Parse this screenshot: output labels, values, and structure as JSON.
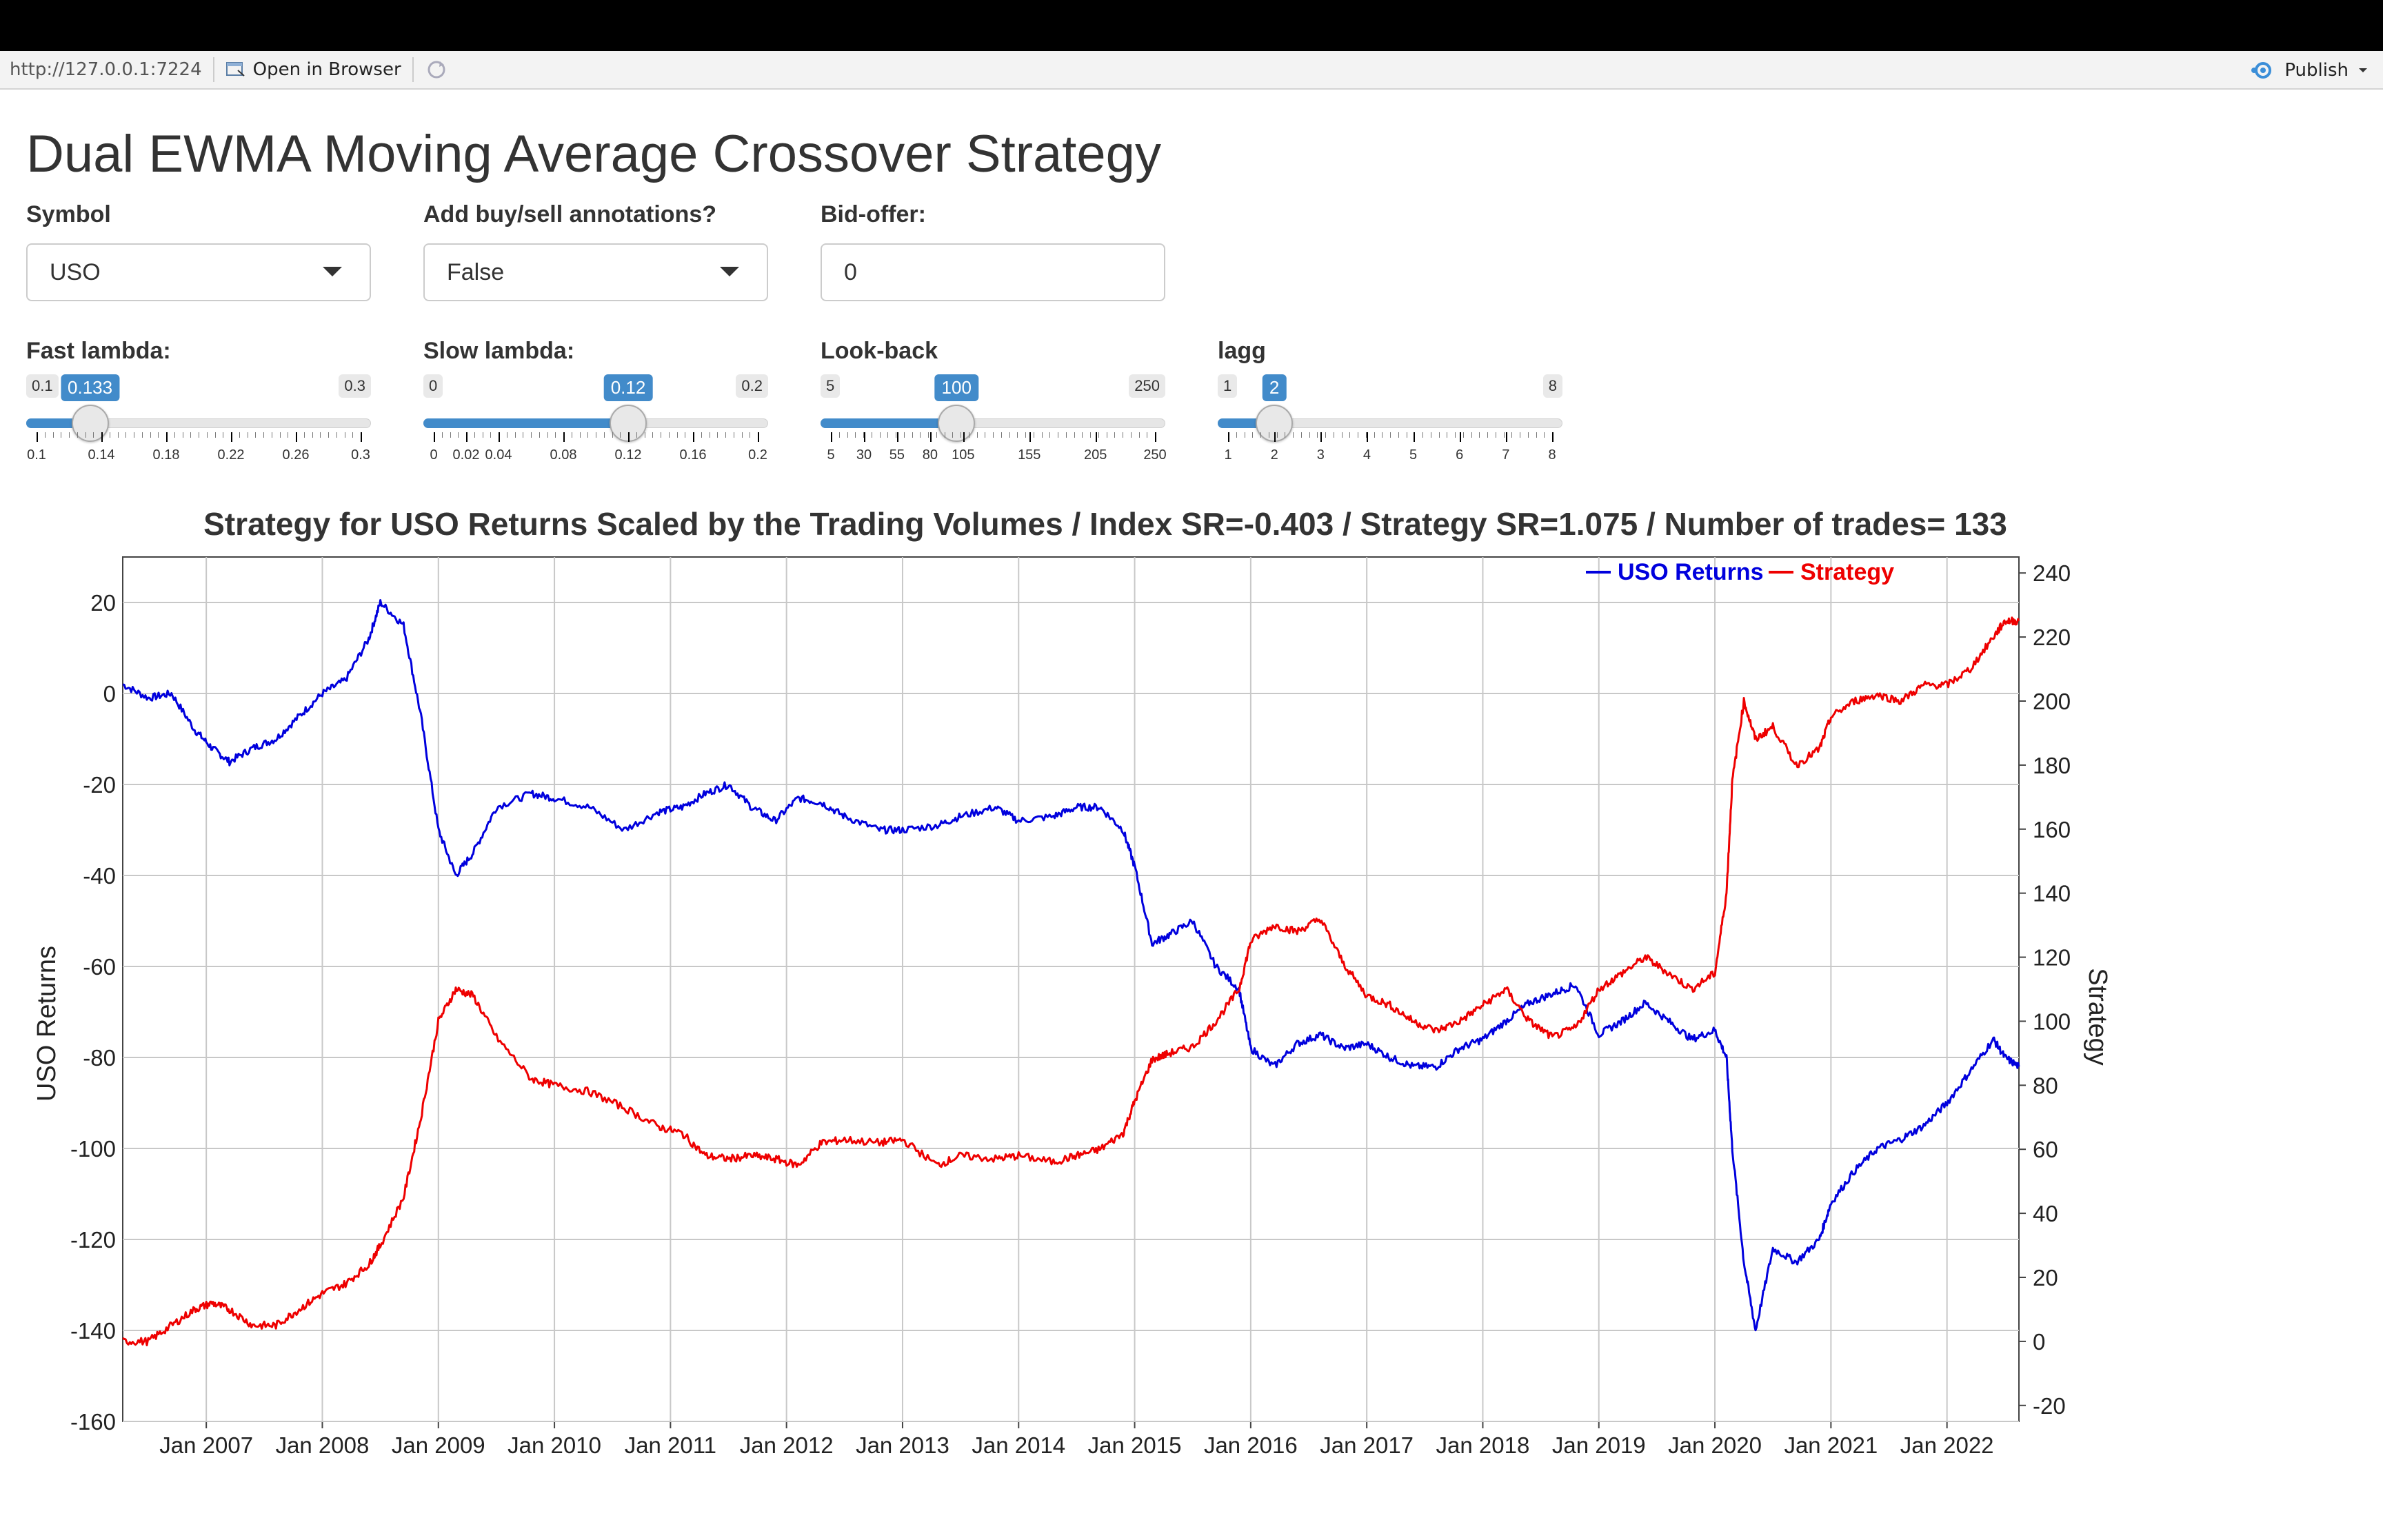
{
  "toolbar": {
    "url": "http://127.0.0.1:7224",
    "open_in_browser": "Open in Browser",
    "publish": "Publish"
  },
  "page": {
    "title": "Dual EWMA Moving Average Crossover Strategy"
  },
  "controls": {
    "symbol": {
      "label": "Symbol",
      "value": "USO"
    },
    "annotations": {
      "label": "Add buy/sell annotations?",
      "value": "False"
    },
    "bid_offer": {
      "label": "Bid-offer:",
      "value": "0"
    }
  },
  "sliders": [
    {
      "id": "fast",
      "label": "Fast lambda:",
      "min": 0.1,
      "max": 0.3,
      "value": 0.133,
      "min_label": "0.1",
      "max_label": "0.3",
      "value_label": "0.133",
      "ticks": [
        "0.1",
        "0.14",
        "0.18",
        "0.22",
        "0.26",
        "0.3"
      ]
    },
    {
      "id": "slow",
      "label": "Slow lambda:",
      "min": 0,
      "max": 0.2,
      "value": 0.12,
      "min_label": "0",
      "max_label": "0.2",
      "value_label": "0.12",
      "ticks": [
        "0",
        "0.02",
        "0.04",
        "0.08",
        "0.12",
        "0.16",
        "0.2"
      ]
    },
    {
      "id": "lookback",
      "label": "Look-back",
      "min": 5,
      "max": 250,
      "value": 100,
      "min_label": "5",
      "max_label": "250",
      "value_label": "100",
      "ticks": [
        "5",
        "30",
        "55",
        "80",
        "105",
        "155",
        "205",
        "250"
      ]
    },
    {
      "id": "lagg",
      "label": "lagg",
      "min": 1,
      "max": 8,
      "value": 2,
      "min_label": "1",
      "max_label": "8",
      "value_label": "2",
      "ticks": [
        "1",
        "2",
        "3",
        "4",
        "5",
        "6",
        "7",
        "8"
      ]
    }
  ],
  "chart_data": {
    "type": "line",
    "title": "Strategy for USO Returns Scaled by the Trading Volumes / Index SR=-0.403 / Strategy SR=1.075 / Number of trades= 133",
    "ylabel_left": "USO Returns",
    "ylabel_right": "Strategy",
    "ylim_left": [
      -160,
      30
    ],
    "ylim_right": [
      -25,
      245
    ],
    "x_ticks": [
      "Jan 2007",
      "Jan 2008",
      "Jan 2009",
      "Jan 2010",
      "Jan 2011",
      "Jan 2012",
      "Jan 2013",
      "Jan 2014",
      "Jan 2015",
      "Jan 2016",
      "Jan 2017",
      "Jan 2018",
      "Jan 2019",
      "Jan 2020",
      "Jan 2021",
      "Jan 2022"
    ],
    "x_range": [
      2006.28,
      2022.62
    ],
    "left_ticks": [
      20,
      0,
      -20,
      -40,
      -60,
      -80,
      -100,
      -120,
      -140,
      -160
    ],
    "right_ticks": [
      240,
      220,
      200,
      180,
      160,
      140,
      120,
      100,
      80,
      60,
      40,
      20,
      0,
      -20
    ],
    "grid": true,
    "legend_position": "top-right",
    "colors": {
      "uso": "#0000dd",
      "strategy": "#ee0000"
    },
    "series": [
      {
        "name": "USO Returns",
        "axis": "left",
        "color": "#0000dd",
        "x": [
          2006.28,
          2006.5,
          2006.7,
          2006.9,
          2007.05,
          2007.2,
          2007.4,
          2007.6,
          2007.8,
          2008.0,
          2008.2,
          2008.4,
          2008.5,
          2008.7,
          2008.85,
          2009.0,
          2009.15,
          2009.3,
          2009.5,
          2009.8,
          2010.0,
          2010.3,
          2010.6,
          2010.9,
          2011.1,
          2011.3,
          2011.5,
          2011.7,
          2011.9,
          2012.1,
          2012.3,
          2012.5,
          2012.8,
          2013.0,
          2013.3,
          2013.5,
          2013.8,
          2014.0,
          2014.3,
          2014.5,
          2014.7,
          2014.9,
          2015.0,
          2015.15,
          2015.3,
          2015.5,
          2015.7,
          2015.9,
          2016.0,
          2016.2,
          2016.4,
          2016.6,
          2016.8,
          2017.0,
          2017.2,
          2017.4,
          2017.6,
          2017.8,
          2018.0,
          2018.2,
          2018.4,
          2018.6,
          2018.8,
          2019.0,
          2019.2,
          2019.4,
          2019.6,
          2019.8,
          2020.0,
          2020.1,
          2020.15,
          2020.25,
          2020.35,
          2020.5,
          2020.7,
          2020.9,
          2021.0,
          2021.2,
          2021.4,
          2021.6,
          2021.8,
          2022.0,
          2022.2,
          2022.4,
          2022.5,
          2022.62
        ],
        "y": [
          2,
          -1,
          0,
          -8,
          -12,
          -15,
          -12,
          -10,
          -5,
          0,
          3,
          12,
          20,
          15,
          -5,
          -30,
          -40,
          -35,
          -25,
          -22,
          -23,
          -25,
          -30,
          -26,
          -25,
          -22,
          -20,
          -25,
          -28,
          -23,
          -24,
          -27,
          -30,
          -30,
          -29,
          -27,
          -25,
          -28,
          -27,
          -25,
          -25,
          -30,
          -38,
          -55,
          -53,
          -50,
          -60,
          -65,
          -78,
          -82,
          -77,
          -75,
          -78,
          -77,
          -80,
          -82,
          -82,
          -78,
          -76,
          -72,
          -68,
          -66,
          -64,
          -75,
          -72,
          -68,
          -72,
          -76,
          -74,
          -80,
          -100,
          -125,
          -140,
          -122,
          -125,
          -120,
          -112,
          -105,
          -100,
          -98,
          -95,
          -90,
          -83,
          -76,
          -80,
          -82
        ]
      },
      {
        "name": "Strategy",
        "axis": "right",
        "color": "#ee0000",
        "x": [
          2006.28,
          2006.5,
          2006.7,
          2006.9,
          2007.05,
          2007.2,
          2007.4,
          2007.6,
          2007.8,
          2008.0,
          2008.2,
          2008.4,
          2008.5,
          2008.7,
          2008.85,
          2009.0,
          2009.15,
          2009.3,
          2009.5,
          2009.8,
          2010.0,
          2010.3,
          2010.6,
          2010.9,
          2011.1,
          2011.3,
          2011.5,
          2011.7,
          2011.9,
          2012.1,
          2012.3,
          2012.5,
          2012.8,
          2013.0,
          2013.3,
          2013.5,
          2013.8,
          2014.0,
          2014.3,
          2014.5,
          2014.7,
          2014.9,
          2015.0,
          2015.15,
          2015.3,
          2015.5,
          2015.7,
          2015.9,
          2016.0,
          2016.2,
          2016.4,
          2016.6,
          2016.8,
          2017.0,
          2017.2,
          2017.4,
          2017.6,
          2017.8,
          2018.0,
          2018.2,
          2018.4,
          2018.6,
          2018.8,
          2019.0,
          2019.2,
          2019.4,
          2019.6,
          2019.8,
          2020.0,
          2020.1,
          2020.15,
          2020.25,
          2020.35,
          2020.5,
          2020.7,
          2020.9,
          2021.0,
          2021.2,
          2021.4,
          2021.6,
          2021.8,
          2022.0,
          2022.2,
          2022.4,
          2022.5,
          2022.62
        ],
        "y": [
          0,
          0,
          5,
          10,
          12,
          10,
          5,
          5,
          10,
          15,
          18,
          24,
          30,
          45,
          70,
          100,
          110,
          108,
          95,
          82,
          80,
          78,
          73,
          67,
          65,
          58,
          57,
          58,
          57,
          55,
          62,
          63,
          62,
          63,
          55,
          58,
          57,
          58,
          56,
          58,
          60,
          65,
          75,
          88,
          90,
          92,
          100,
          110,
          125,
          130,
          128,
          132,
          118,
          108,
          105,
          100,
          97,
          100,
          105,
          110,
          100,
          95,
          98,
          110,
          115,
          120,
          115,
          110,
          115,
          140,
          175,
          200,
          188,
          192,
          180,
          185,
          195,
          200,
          202,
          200,
          205,
          205,
          210,
          220,
          225,
          225
        ]
      }
    ]
  }
}
